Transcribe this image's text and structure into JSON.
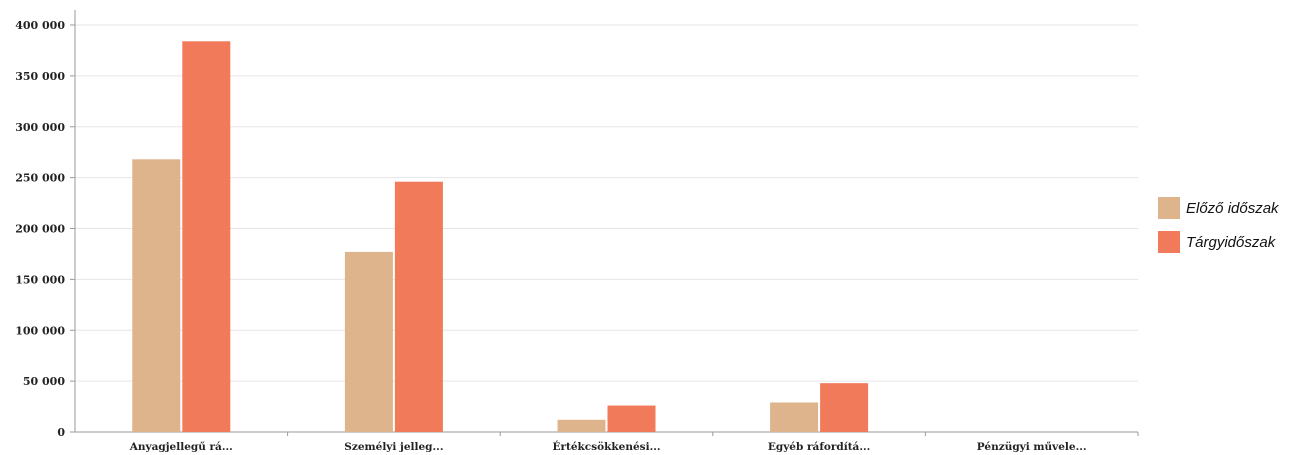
{
  "chart_data": {
    "type": "bar",
    "title": "",
    "xlabel": "",
    "ylabel": "",
    "ylim": [
      0,
      400000
    ],
    "yticks": [
      0,
      50000,
      100000,
      150000,
      200000,
      250000,
      300000,
      350000,
      400000
    ],
    "ytick_labels": [
      "0",
      "50 000",
      "100 000",
      "150 000",
      "200 000",
      "250 000",
      "300 000",
      "350 000",
      "400 000"
    ],
    "categories": [
      "Anyagjellegű rá...",
      "Személyi jelleg...",
      "Értékcsökkenési...",
      "Egyéb ráfordítá...",
      "Pénzügyi művele..."
    ],
    "series": [
      {
        "name": "Előző időszak",
        "color": "#ddb48c",
        "values": [
          268000,
          177000,
          12000,
          29000,
          0
        ]
      },
      {
        "name": "Tárgyidőszak",
        "color": "#f07a5a",
        "values": [
          384000,
          246000,
          26000,
          48000,
          0
        ]
      }
    ],
    "grid": true,
    "legend_position": "right"
  }
}
